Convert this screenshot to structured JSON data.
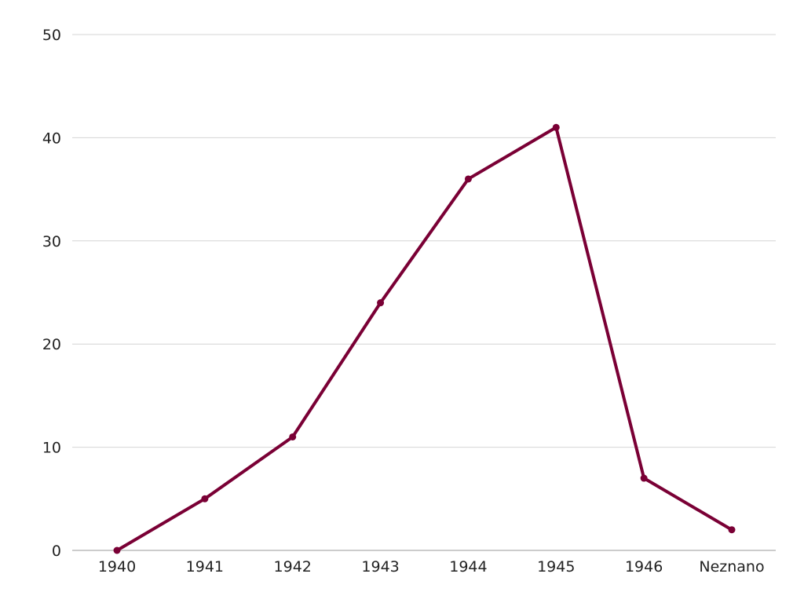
{
  "chart_data": {
    "type": "line",
    "categories": [
      "1940",
      "1941",
      "1942",
      "1943",
      "1944",
      "1945",
      "1946",
      "Neznano"
    ],
    "series": [
      {
        "values": [
          0,
          5,
          11,
          24,
          36,
          41,
          7,
          2
        ],
        "color": "#7a0035"
      }
    ],
    "ylim": [
      0,
      50
    ],
    "yticks": [
      0,
      10,
      20,
      30,
      40,
      50
    ],
    "grid": true,
    "legend": "none",
    "title": "",
    "xlabel": "",
    "ylabel": ""
  }
}
